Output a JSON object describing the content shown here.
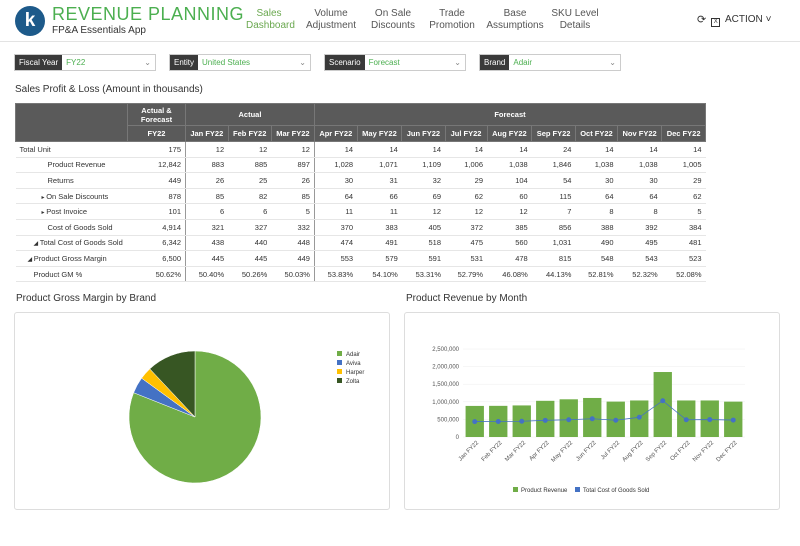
{
  "header": {
    "logo_letter": "k",
    "title": "REVENUE PLANNING",
    "subtitle": "FP&A Essentials App",
    "nav": [
      {
        "line1": "Sales",
        "line2": "Dashboard",
        "active": true
      },
      {
        "line1": "Volume",
        "line2": "Adjustment",
        "active": false
      },
      {
        "line1": "On Sale",
        "line2": "Discounts",
        "active": false
      },
      {
        "line1": "Trade",
        "line2": "Promotion",
        "active": false
      },
      {
        "line1": "Base",
        "line2": "Assumptions",
        "active": false
      },
      {
        "line1": "SKU Level",
        "line2": "Details",
        "active": false
      }
    ],
    "refresh_icon": "refresh-icon",
    "export_icon": "excel-export-icon",
    "action_label": "ACTION"
  },
  "filters": [
    {
      "label": "Fiscal Year",
      "value": "FY22"
    },
    {
      "label": "Entity",
      "value": "United States"
    },
    {
      "label": "Scenario",
      "value": "Forecast"
    },
    {
      "label": "Brand",
      "value": "Adair"
    }
  ],
  "pl": {
    "title": "Sales Profit & Loss (Amount in thousands)",
    "header_group": [
      "Actual & Forecast",
      "Actual",
      "Forecast"
    ],
    "columns": [
      "FY22",
      "Jan FY22",
      "Feb FY22",
      "Mar FY22",
      "Apr FY22",
      "May FY22",
      "Jun FY22",
      "Jul FY22",
      "Aug FY22",
      "Sep FY22",
      "Oct FY22",
      "Nov FY22",
      "Dec FY22"
    ],
    "rows": [
      {
        "label": "Total Unit",
        "values": [
          "175",
          "12",
          "12",
          "12",
          "14",
          "14",
          "14",
          "14",
          "14",
          "24",
          "14",
          "14",
          "14"
        ]
      },
      {
        "label": "Product Revenue",
        "values": [
          "12,842",
          "883",
          "885",
          "897",
          "1,028",
          "1,071",
          "1,109",
          "1,006",
          "1,038",
          "1,846",
          "1,038",
          "1,038",
          "1,005"
        ]
      },
      {
        "label": "Returns",
        "values": [
          "449",
          "26",
          "25",
          "26",
          "30",
          "31",
          "32",
          "29",
          "104",
          "54",
          "30",
          "30",
          "29"
        ]
      },
      {
        "label": "On Sale Discounts",
        "values": [
          "878",
          "85",
          "82",
          "85",
          "64",
          "66",
          "69",
          "62",
          "60",
          "115",
          "64",
          "64",
          "62"
        ]
      },
      {
        "label": "Post Invoice",
        "values": [
          "101",
          "6",
          "6",
          "5",
          "11",
          "11",
          "12",
          "12",
          "12",
          "7",
          "8",
          "8",
          "5"
        ]
      },
      {
        "label": "Cost of Goods Sold",
        "values": [
          "4,914",
          "321",
          "327",
          "332",
          "370",
          "383",
          "405",
          "372",
          "385",
          "856",
          "388",
          "392",
          "384"
        ]
      },
      {
        "label": "Total Cost of Goods Sold",
        "values": [
          "6,342",
          "438",
          "440",
          "448",
          "474",
          "491",
          "518",
          "475",
          "560",
          "1,031",
          "490",
          "495",
          "481"
        ]
      },
      {
        "label": "Product Gross Margin",
        "values": [
          "6,500",
          "445",
          "445",
          "449",
          "553",
          "579",
          "591",
          "531",
          "478",
          "815",
          "548",
          "543",
          "523"
        ]
      },
      {
        "label": "Product GM %",
        "values": [
          "50.62%",
          "50.40%",
          "50.26%",
          "50.03%",
          "53.83%",
          "54.10%",
          "53.31%",
          "52.79%",
          "46.08%",
          "44.13%",
          "52.81%",
          "52.32%",
          "52.08%"
        ]
      }
    ]
  },
  "gm_chart": {
    "title": "Product Gross Margin by Brand"
  },
  "rev_chart": {
    "title": "Product Revenue by Month"
  },
  "chart_data": [
    {
      "type": "pie",
      "title": "Product Gross Margin by Brand",
      "categories": [
        "Adair",
        "Aviva",
        "Harper",
        "Zolta"
      ],
      "values": [
        81,
        4,
        3,
        12
      ],
      "colors": [
        "#70ad47",
        "#4472c4",
        "#ffc000",
        "#375623"
      ],
      "legend": "right"
    },
    {
      "type": "bar",
      "title": "Product Revenue by Month",
      "categories": [
        "Jan FY22",
        "Feb FY22",
        "Mar FY22",
        "Apr FY22",
        "May FY22",
        "Jun FY22",
        "Jul FY22",
        "Aug FY22",
        "Sep FY22",
        "Oct FY22",
        "Nov FY22",
        "Dec FY22"
      ],
      "series": [
        {
          "name": "Product Revenue",
          "type": "bar",
          "color": "#70ad47",
          "values": [
            883000,
            885000,
            897000,
            1028000,
            1071000,
            1109000,
            1006000,
            1038000,
            1846000,
            1038000,
            1038000,
            1005000
          ]
        },
        {
          "name": "Total Cost of Goods Sold",
          "type": "line",
          "color": "#4472c4",
          "values": [
            438000,
            440000,
            448000,
            474000,
            491000,
            518000,
            475000,
            560000,
            1031000,
            490000,
            495000,
            481000
          ]
        }
      ],
      "yticks": [
        "0",
        "500,000",
        "1,000,000",
        "1,500,000",
        "2,000,000",
        "2,500,000"
      ],
      "ylim": [
        0,
        2500000
      ],
      "legend": "bottom"
    }
  ]
}
